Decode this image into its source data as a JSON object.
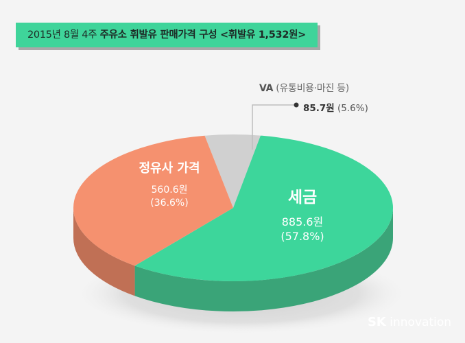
{
  "title": {
    "prefix": "2015년 8월 4주",
    "main": "주유소 휘발유 판매가격 구성 <휘발유 1,532원>"
  },
  "chart_data": {
    "type": "pie",
    "slices": [
      {
        "name": "세금",
        "value": 885.6,
        "value_label": "885.6원",
        "percent_label": "(57.8%)",
        "color": "#3dd69b",
        "side_color": "#3aa478"
      },
      {
        "name": "정유사 가격",
        "value": 560.6,
        "value_label": "560.6원",
        "percent_label": "(36.6%)",
        "color": "#f5916f",
        "side_color": "#c07055"
      },
      {
        "name": "VA (유통비용·마진 등)",
        "name_bold": "VA",
        "name_rest": " (유통비용·마진 등)",
        "value": 85.7,
        "value_label": "85.7원",
        "percent_label": " (5.6%)",
        "color": "#d0d0d0",
        "side_color": "#a9a9a9"
      }
    ],
    "total_label": "휘발유 1,532원"
  },
  "brand": {
    "bold": "SK",
    "rest": " innovation"
  },
  "colors": {
    "background": "#f4f4f4",
    "banner": "#3fd49a",
    "leader": "#bdbdbd",
    "dot": "#333333"
  }
}
